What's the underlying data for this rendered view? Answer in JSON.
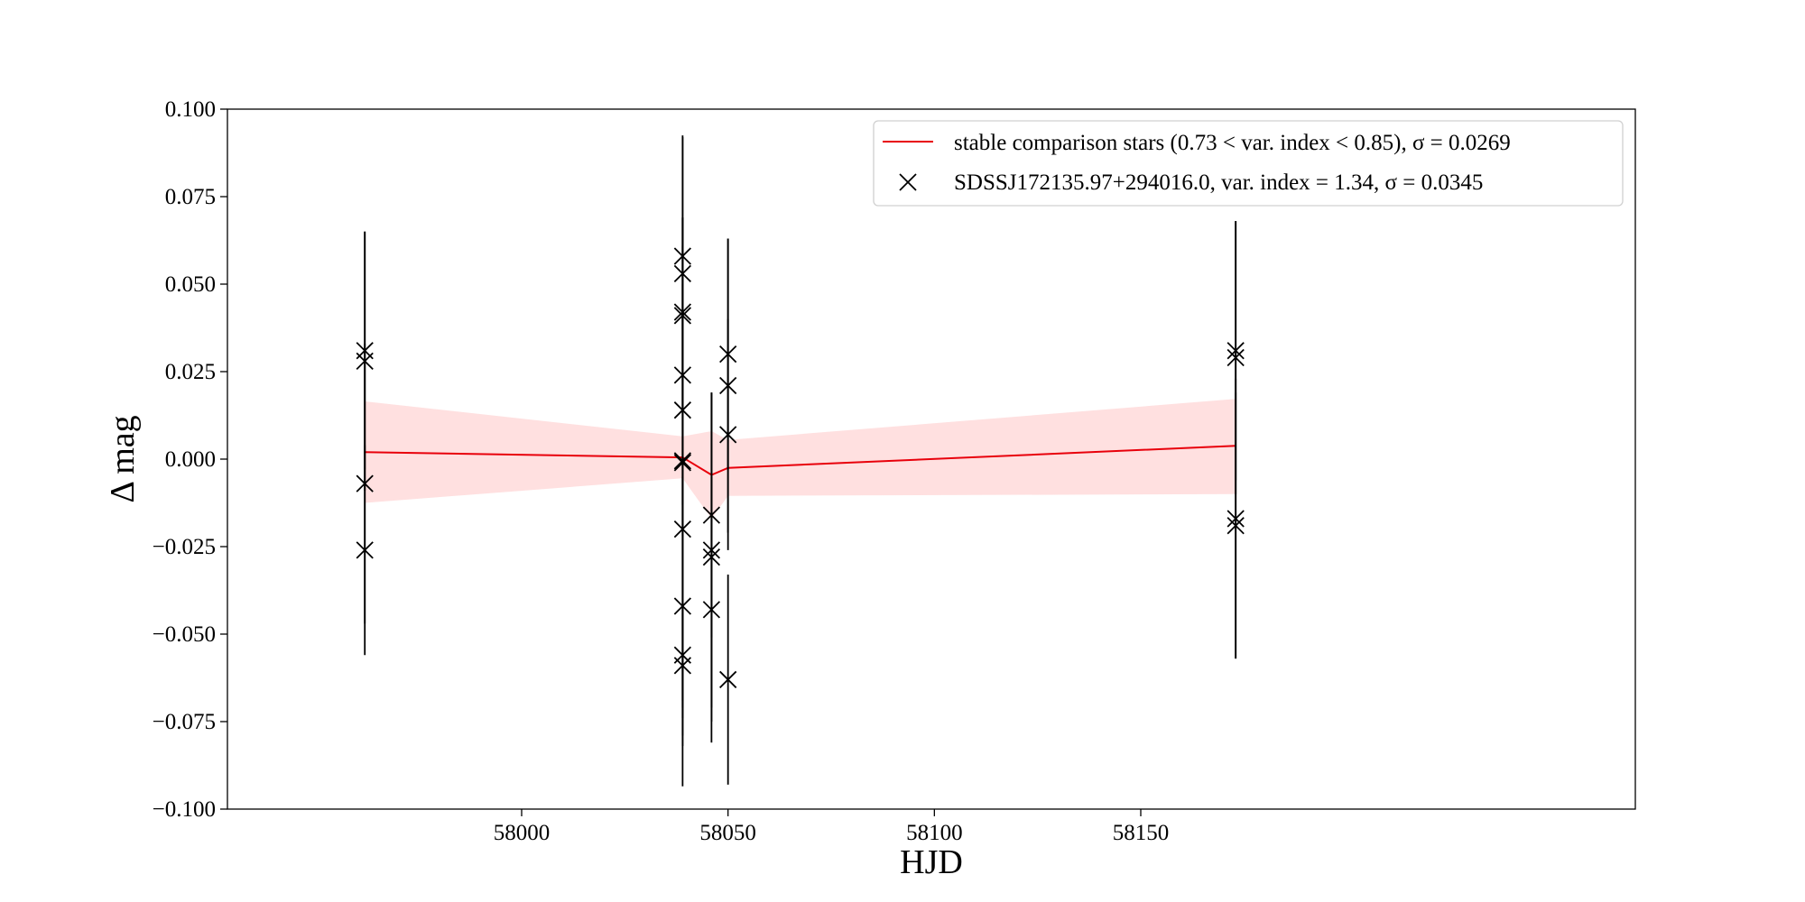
{
  "chart_data": {
    "type": "scatter",
    "title": "",
    "xlabel": "HJD",
    "ylabel": "Δ mag",
    "xlim": [
      57951,
      58185
    ],
    "ylim": [
      -0.1,
      0.1
    ],
    "x_ticks": [
      58000,
      58050,
      58100,
      58150
    ],
    "x_tick_labels": [
      "58000",
      "58050",
      "58100",
      "58150"
    ],
    "y_ticks": [
      0.1,
      0.075,
      0.05,
      0.025,
      0.0,
      -0.025,
      -0.05,
      -0.075,
      -0.1
    ],
    "y_tick_labels": [
      "0.100",
      "0.075",
      "0.050",
      "0.025",
      "0.000",
      "−0.025",
      "−0.050",
      "−0.075",
      "−0.100"
    ],
    "grid": false,
    "legend_position": "top-right",
    "legend": [
      {
        "label": "stable comparison stars (0.73 < var. index < 0.85), σ = 0.0269",
        "marker": "line",
        "color": "#e8000b"
      },
      {
        "label": "SDSSJ172135.97+294016.0, var. index = 1.34, σ = 0.0345",
        "marker": "x",
        "color": "#000000"
      }
    ],
    "series": [
      {
        "name": "stable comparison stars (0.73 < var. index < 0.85), σ = 0.0269",
        "kind": "line_with_band",
        "color": "#e8000b",
        "band_color": "#ffd6d6",
        "x": [
          57962,
          58039,
          58046,
          58050,
          58173
        ],
        "y": [
          0.002,
          0.0005,
          -0.0045,
          -0.0025,
          0.0038
        ],
        "upper": [
          0.0165,
          0.0065,
          0.008,
          0.0055,
          0.0172
        ],
        "lower": [
          -0.0125,
          -0.0055,
          -0.017,
          -0.0105,
          -0.01
        ]
      },
      {
        "name": "SDSSJ172135.97+294016.0, var. index = 1.34, σ = 0.0345",
        "kind": "scatter_with_errorbars",
        "color": "#000000",
        "marker": "x",
        "points": [
          {
            "x": 57962,
            "y": 0.031,
            "err": 0.034
          },
          {
            "x": 57962,
            "y": 0.028,
            "err": 0.037
          },
          {
            "x": 57962,
            "y": -0.007,
            "err": 0.04
          },
          {
            "x": 57962,
            "y": -0.026,
            "err": 0.03
          },
          {
            "x": 58039,
            "y": 0.058,
            "err": 0.034
          },
          {
            "x": 58039,
            "y": 0.053,
            "err": 0.016
          },
          {
            "x": 58039,
            "y": 0.042,
            "err": 0.027
          },
          {
            "x": 58039,
            "y": 0.041,
            "err": 0.028
          },
          {
            "x": 58039,
            "y": 0.024,
            "err": 0.037
          },
          {
            "x": 58039,
            "y": 0.014,
            "err": 0.036
          },
          {
            "x": 58039,
            "y": -0.0005,
            "err": 0.093
          },
          {
            "x": 58039,
            "y": -0.001,
            "err": 0.07
          },
          {
            "x": 58039,
            "y": -0.02,
            "err": 0.062
          },
          {
            "x": 58039,
            "y": -0.042,
            "err": 0.037
          },
          {
            "x": 58039,
            "y": -0.056,
            "err": 0.013
          },
          {
            "x": 58039,
            "y": -0.059,
            "err": 0.015
          },
          {
            "x": 58046,
            "y": -0.016,
            "err": 0.035
          },
          {
            "x": 58046,
            "y": -0.026,
            "err": 0.045
          },
          {
            "x": 58046,
            "y": -0.028,
            "err": 0.047
          },
          {
            "x": 58046,
            "y": -0.043,
            "err": 0.038
          },
          {
            "x": 58050,
            "y": 0.03,
            "err": 0.033
          },
          {
            "x": 58050,
            "y": 0.021,
            "err": 0.042
          },
          {
            "x": 58050,
            "y": 0.007,
            "err": 0.033
          },
          {
            "x": 58050,
            "y": -0.063,
            "err": 0.03
          },
          {
            "x": 58173,
            "y": 0.031,
            "err": 0.037
          },
          {
            "x": 58173,
            "y": 0.029,
            "err": 0.039
          },
          {
            "x": 58173,
            "y": -0.017,
            "err": 0.04
          },
          {
            "x": 58173,
            "y": -0.019,
            "err": 0.038
          }
        ]
      }
    ]
  }
}
